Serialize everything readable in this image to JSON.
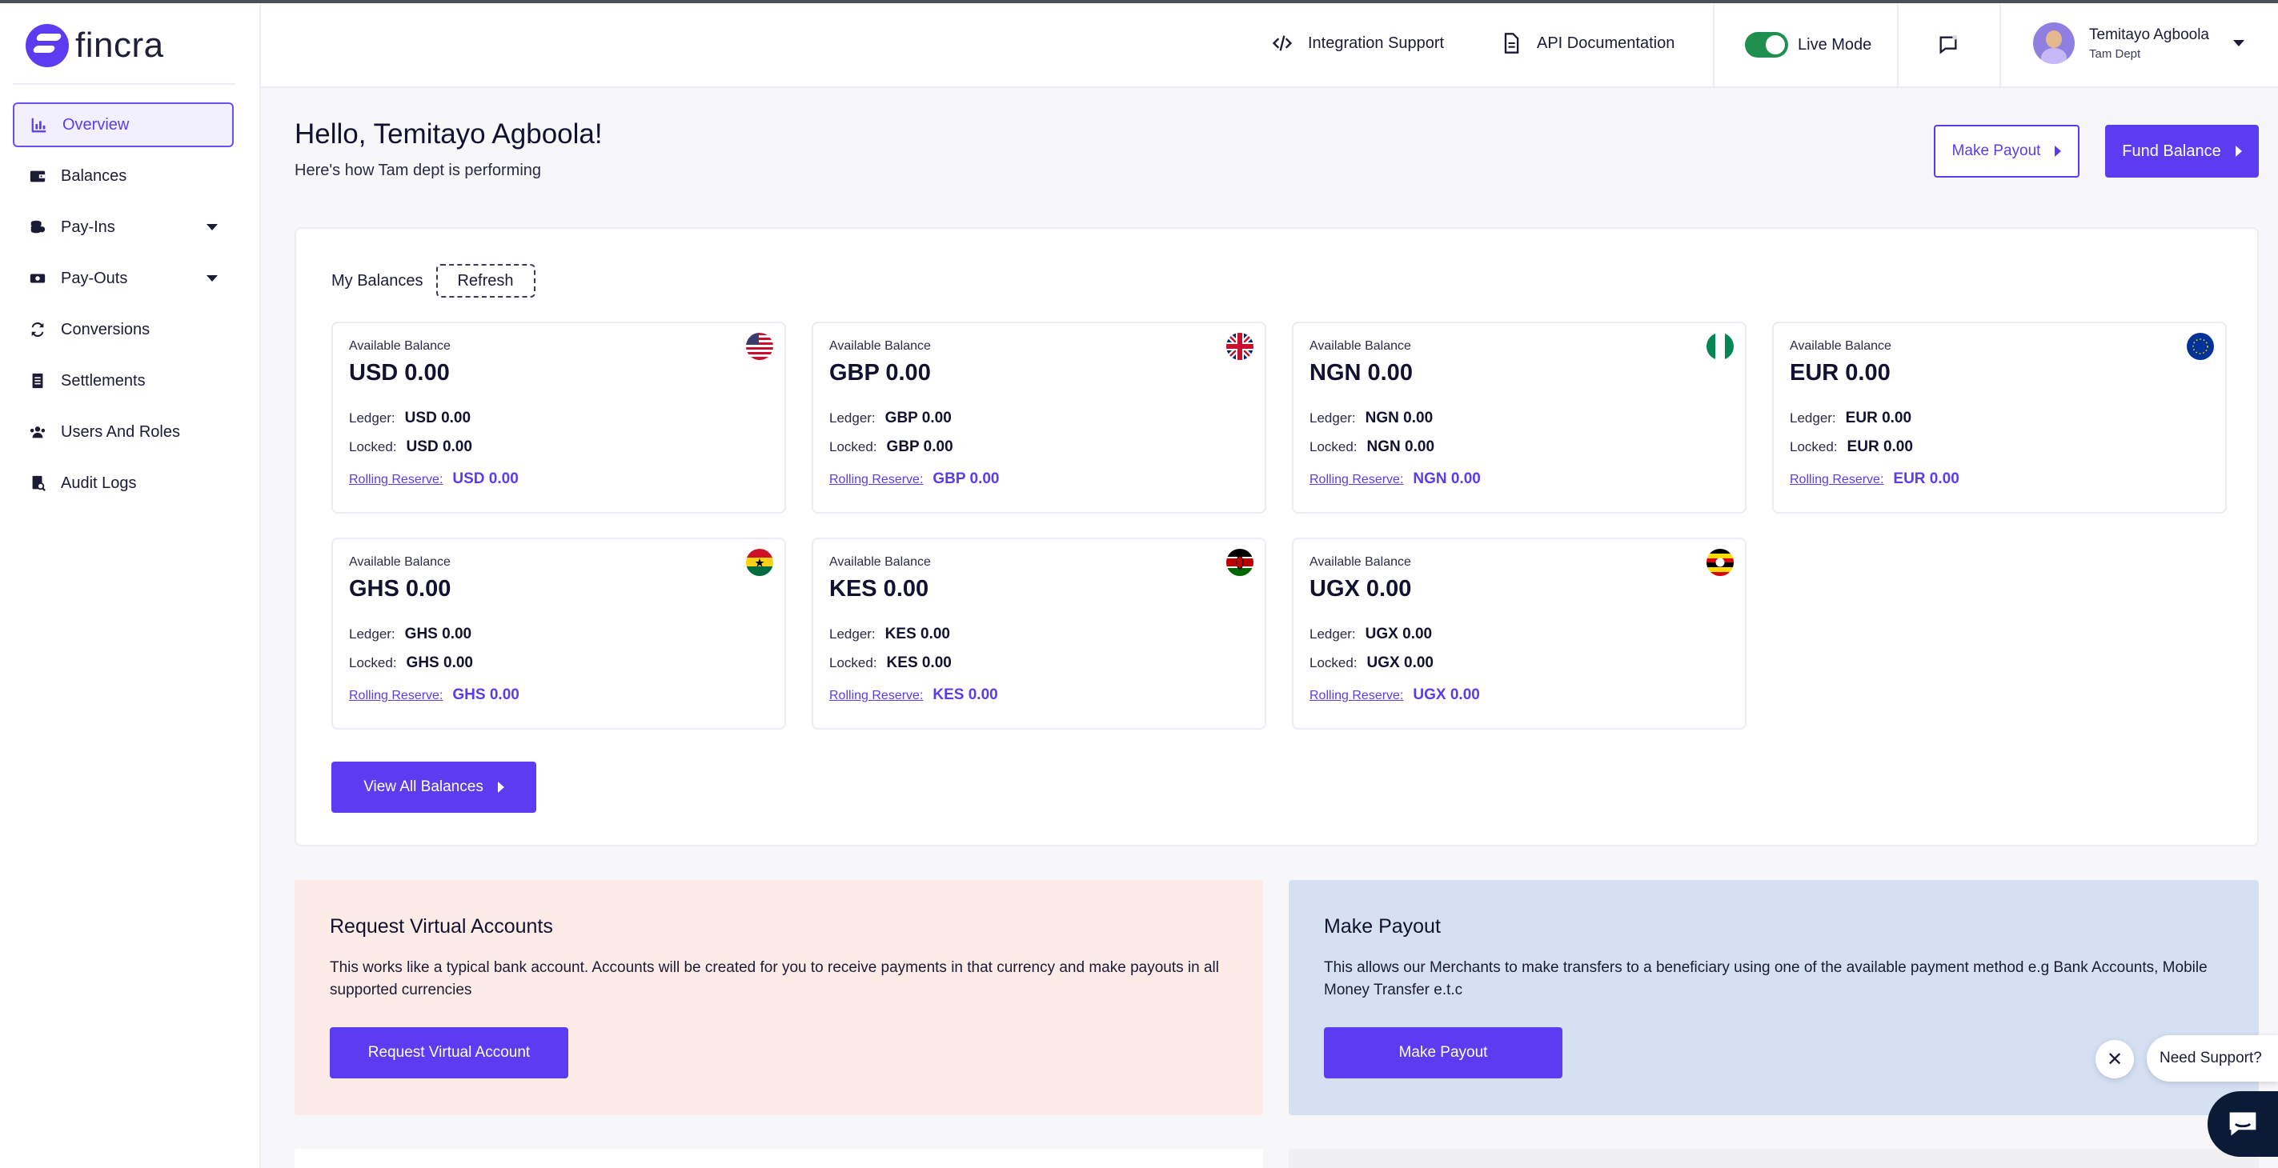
{
  "brand": {
    "name": "fincra"
  },
  "nav": [
    {
      "label": "Overview",
      "icon": "chart-icon",
      "active": true
    },
    {
      "label": "Balances",
      "icon": "wallet-icon"
    },
    {
      "label": "Pay-Ins",
      "icon": "coins-icon",
      "caret": true
    },
    {
      "label": "Pay-Outs",
      "icon": "cash-icon",
      "caret": true
    },
    {
      "label": "Conversions",
      "icon": "exchange-icon"
    },
    {
      "label": "Settlements",
      "icon": "document-icon"
    },
    {
      "label": "Users And Roles",
      "icon": "users-icon"
    },
    {
      "label": "Audit Logs",
      "icon": "audit-icon"
    }
  ],
  "header": {
    "integration_support": "Integration Support",
    "api_docs": "API Documentation",
    "live_mode": "Live Mode",
    "user_name": "Temitayo Agboola",
    "user_dept": "Tam Dept"
  },
  "greeting": {
    "title": "Hello, Temitayo Agboola!",
    "subtitle": "Here's how Tam dept is performing"
  },
  "actions": {
    "make_payout": "Make Payout",
    "fund_balance": "Fund Balance"
  },
  "balances": {
    "title": "My Balances",
    "refresh": "Refresh",
    "available_label": "Available Balance",
    "ledger_label": "Ledger:",
    "locked_label": "Locked:",
    "reserve_label": "Rolling Reserve:",
    "view_all": "View All Balances",
    "cards": [
      {
        "currency": "USD",
        "available": "USD 0.00",
        "ledger": "USD 0.00",
        "locked": "USD 0.00",
        "reserve": "USD 0.00"
      },
      {
        "currency": "GBP",
        "available": "GBP 0.00",
        "ledger": "GBP 0.00",
        "locked": "GBP 0.00",
        "reserve": "GBP 0.00"
      },
      {
        "currency": "NGN",
        "available": "NGN 0.00",
        "ledger": "NGN 0.00",
        "locked": "NGN 0.00",
        "reserve": "NGN 0.00"
      },
      {
        "currency": "EUR",
        "available": "EUR 0.00",
        "ledger": "EUR 0.00",
        "locked": "EUR 0.00",
        "reserve": "EUR 0.00"
      },
      {
        "currency": "GHS",
        "available": "GHS 0.00",
        "ledger": "GHS 0.00",
        "locked": "GHS 0.00",
        "reserve": "GHS 0.00"
      },
      {
        "currency": "KES",
        "available": "KES 0.00",
        "ledger": "KES 0.00",
        "locked": "KES 0.00",
        "reserve": "KES 0.00"
      },
      {
        "currency": "UGX",
        "available": "UGX 0.00",
        "ledger": "UGX 0.00",
        "locked": "UGX 0.00",
        "reserve": "UGX 0.00"
      }
    ]
  },
  "promos": {
    "virtual": {
      "title": "Request Virtual Accounts",
      "body": "This works like a typical bank account. Accounts will be created for you to receive payments in that currency and make payouts in all supported currencies",
      "button": "Request Virtual Account"
    },
    "payout": {
      "title": "Make Payout",
      "body": "This allows our Merchants to make transfers to a beneficiary using one of the available payment method e.g Bank Accounts, Mobile Money Transfer e.t.c",
      "button": "Make Payout"
    }
  },
  "support": {
    "label": "Need Support?"
  },
  "colors": {
    "primary": "#5b3cf0",
    "live_toggle": "#1f8f4e",
    "pink_card": "#fcebe6",
    "blue_card": "#d5e1f3",
    "fab": "#0b1a36"
  }
}
